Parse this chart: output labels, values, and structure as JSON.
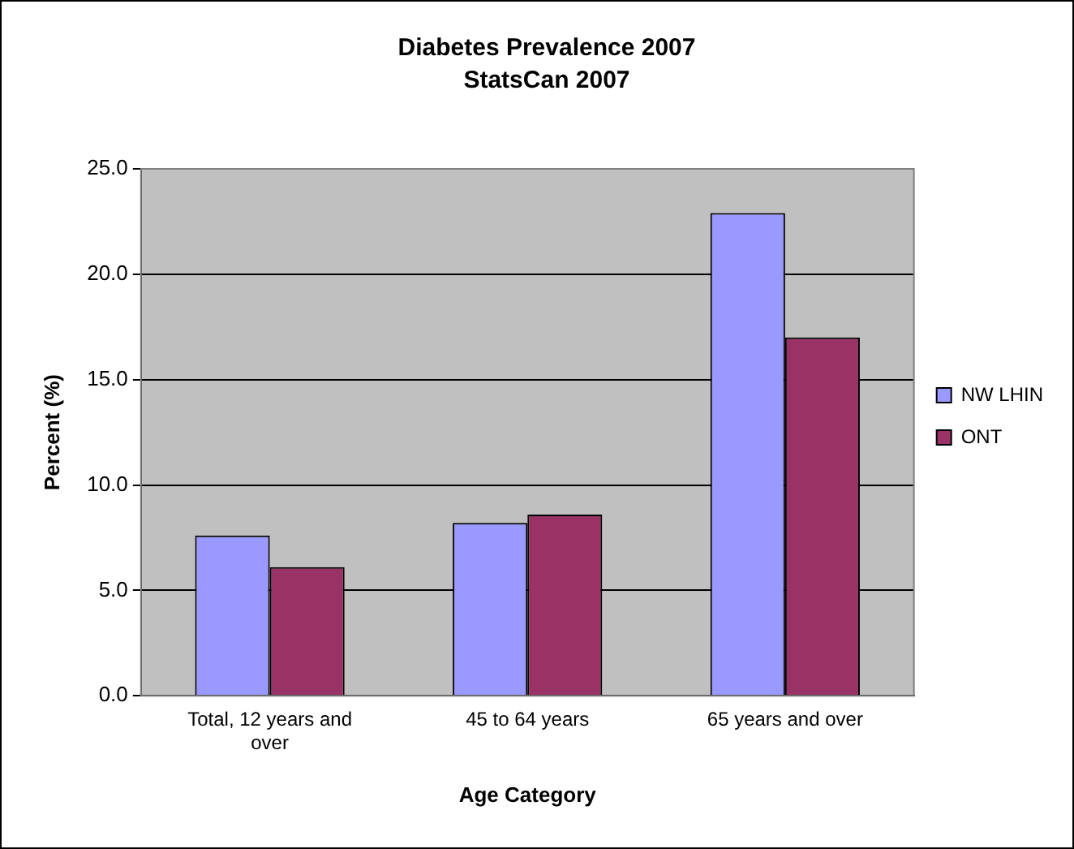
{
  "chart_data": {
    "type": "bar",
    "title": "Diabetes Prevalence 2007",
    "subtitle": "StatsCan 2007",
    "xlabel": "Age Category",
    "ylabel": "Percent (%)",
    "categories": [
      "Total, 12 years and over",
      "45 to 64 years",
      "65 years and over"
    ],
    "series": [
      {
        "name": "NW LHIN",
        "color": "#9999ff",
        "values": [
          7.6,
          8.2,
          22.9
        ]
      },
      {
        "name": "ONT",
        "color": "#993366",
        "values": [
          6.1,
          8.6,
          17.0
        ]
      }
    ],
    "ylim": [
      0,
      25
    ],
    "yticks": [
      {
        "value": 0,
        "label": "0.0"
      },
      {
        "value": 5,
        "label": "5.0"
      },
      {
        "value": 10,
        "label": "10.0"
      },
      {
        "value": 15,
        "label": "15.0"
      },
      {
        "value": 20,
        "label": "20.0"
      },
      {
        "value": 25,
        "label": "25.0"
      }
    ],
    "grid": "y",
    "legend": "right"
  }
}
